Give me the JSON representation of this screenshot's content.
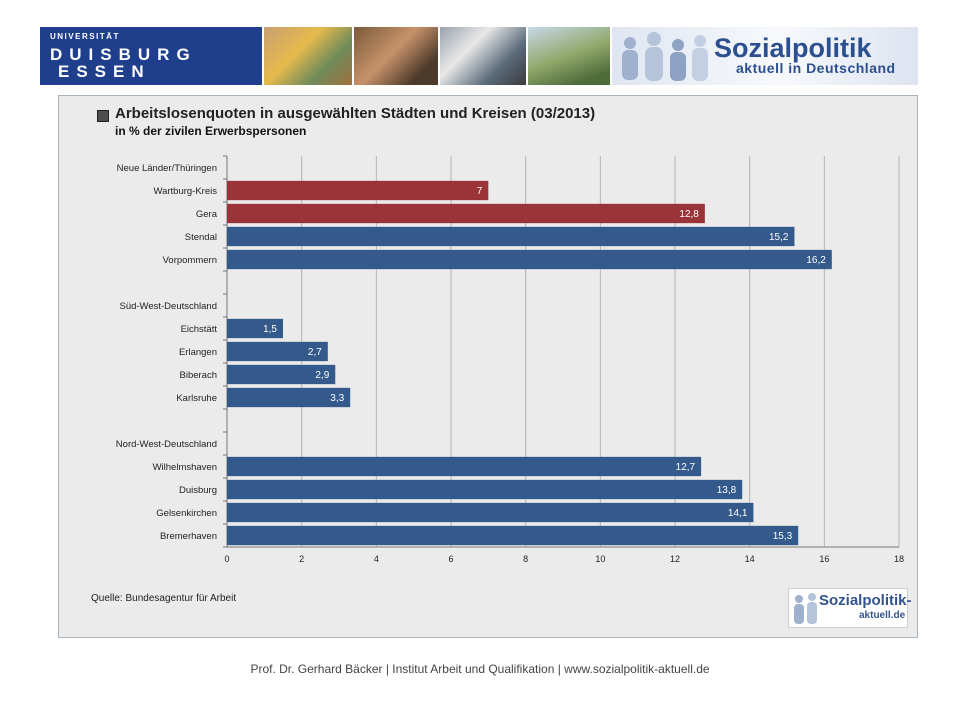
{
  "banner": {
    "university_line1": "UNIVERSITÄT",
    "university_line2": "DUISBURG",
    "university_line3": "ESSEN",
    "logo_title": "Sozialpolitik",
    "logo_subtitle": "aktuell in Deutschland"
  },
  "chart_data": {
    "type": "bar",
    "orientation": "horizontal",
    "title": "Arbeitslosenquoten in ausgewählten Städten und Kreisen (03/2013)",
    "subtitle": "in % der zivilen Erwerbspersonen",
    "xlim": [
      0,
      18
    ],
    "xticks": [
      "0",
      "2",
      "4",
      "6",
      "8",
      "10",
      "12",
      "14",
      "16",
      "18"
    ],
    "grid": "vertical",
    "colors": {
      "neue_laender": "#9b3438",
      "default": "#345a8c"
    },
    "categories": [
      "Neue Länder/Thüringen",
      "Wartburg-Kreis",
      "Gera",
      "Stendal",
      "Vorpommern",
      "",
      "Süd-West-Deutschland",
      "Eichstätt",
      "Erlangen",
      "Biberach",
      "Karlsruhe",
      "",
      "Nord-West-Deutschland",
      "Wilhelmshaven",
      "Duisburg",
      "Gelsenkirchen",
      "Bremerhaven"
    ],
    "values": [
      null,
      7,
      12.8,
      15.2,
      16.2,
      null,
      null,
      1.5,
      2.7,
      2.9,
      3.3,
      null,
      null,
      12.7,
      13.8,
      14.1,
      15.3
    ],
    "labels": [
      "",
      "7",
      "12,8",
      "15,2",
      "16,2",
      "",
      "",
      "1,5",
      "2,7",
      "2,9",
      "3,3",
      "",
      "",
      "12,7",
      "13,8",
      "14,1",
      "15,3"
    ],
    "bar_colors": [
      "",
      "#9b3438",
      "#9b3438",
      "#345a8c",
      "#345a8c",
      "",
      "",
      "#345a8c",
      "#345a8c",
      "#345a8c",
      "#345a8c",
      "",
      "",
      "#345a8c",
      "#345a8c",
      "#345a8c",
      "#345a8c"
    ],
    "source": "Quelle: Bundesagentur für Arbeit"
  },
  "small_logo": {
    "line1": "Sozialpolitik-",
    "line2": "aktuell.de"
  },
  "footer": "Prof. Dr. Gerhard Bäcker | Institut Arbeit und Qualifikation | www.sozialpolitik-aktuell.de"
}
